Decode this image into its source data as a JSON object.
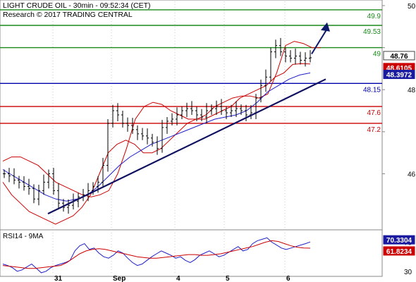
{
  "header": {
    "title": "LIGHT CRUDE OIL - 30min - 09:52:34 (CET)",
    "subtitle": "Research © 2017 TRADING CENTRAL"
  },
  "rsi_panel": {
    "label": "RSI14 - 9MA"
  },
  "colors": {
    "candles": "#000000",
    "upper_band": "#cc0000",
    "lower_band": "#cc0000",
    "ma_blue": "#1f1fc8",
    "trend_line": "#101060",
    "arrow": "#0d1a6b",
    "green_level": "#1a8a1a",
    "blue_level": "#0000aa",
    "red_level": "#cc0000",
    "price_badge": "#ffffff",
    "badge_red": "#cc0000",
    "badge_blue": "#1a1aa0"
  },
  "chart_data": [
    {
      "type": "candlestick",
      "title": "LIGHT CRUDE OIL - 30min - 09:52:34 (CET)",
      "x_tick_labels": [
        "31",
        "Sep",
        "4",
        "5",
        "6"
      ],
      "y_tick_labels": [
        "50",
        "48",
        "46"
      ],
      "ylim": [
        44.7,
        50.1
      ],
      "levels": [
        {
          "label": "49.9",
          "value": 49.9,
          "color": "green"
        },
        {
          "label": "49.53",
          "value": 49.53,
          "color": "green"
        },
        {
          "label": "49",
          "value": 49.0,
          "color": "green"
        },
        {
          "label": "48.15",
          "value": 48.15,
          "color": "blue"
        },
        {
          "label": "47.6",
          "value": 47.6,
          "color": "red"
        },
        {
          "label": "47.2",
          "value": 47.2,
          "color": "red"
        }
      ],
      "badges": [
        {
          "label": "48.76",
          "value": 48.76,
          "kind": "price"
        },
        {
          "label": "48.6105",
          "value": 48.6105,
          "kind": "red"
        },
        {
          "label": "48.3972",
          "value": 48.3972,
          "kind": "blue"
        }
      ],
      "close": [
        46.0,
        45.95,
        45.85,
        45.8,
        45.7,
        45.65,
        45.4,
        45.6,
        45.8,
        46.0,
        45.6,
        45.3,
        45.2,
        45.25,
        45.35,
        45.45,
        45.5,
        45.6,
        45.7,
        45.8,
        46.2,
        47.2,
        47.5,
        47.4,
        47.2,
        47.15,
        47.05,
        46.95,
        46.9,
        46.85,
        46.75,
        46.6,
        47.1,
        47.25,
        47.3,
        47.4,
        47.5,
        47.55,
        47.5,
        47.4,
        47.35,
        47.5,
        47.55,
        47.6,
        47.5,
        47.45,
        47.5,
        47.55,
        47.5,
        47.4,
        47.45,
        47.8,
        48.1,
        48.3,
        48.9,
        49.05,
        48.9,
        48.8,
        48.75,
        48.8,
        48.7,
        48.75,
        48.76
      ],
      "upper_band": [
        46.3,
        46.4,
        46.4,
        46.3,
        46.2,
        46.0,
        45.8,
        45.7,
        45.6,
        45.5,
        45.45,
        45.5,
        45.6,
        46.0,
        46.6,
        47.3,
        47.6,
        47.7,
        47.65,
        47.5,
        47.4,
        47.3,
        47.3,
        47.4,
        47.6,
        47.7,
        47.8,
        47.85,
        47.85,
        47.8,
        47.9,
        48.4,
        49.05,
        49.15,
        49.1,
        49.0,
        49.0
      ],
      "lower_band": [
        45.8,
        45.5,
        45.3,
        45.1,
        45.0,
        44.9,
        44.8,
        44.9,
        45.0,
        45.2,
        45.5,
        46.0,
        46.5,
        46.7,
        46.8,
        46.7,
        46.5,
        46.5,
        46.6,
        46.8,
        47.0,
        47.2,
        47.3,
        47.3,
        47.4,
        47.5,
        47.6,
        47.8,
        47.9,
        48.0,
        48.1,
        48.3,
        48.4,
        48.6,
        48.62,
        48.61
      ],
      "ma": [
        46.1,
        45.95,
        45.8,
        45.65,
        45.5,
        45.4,
        45.35,
        45.4,
        45.5,
        45.7,
        45.95,
        46.2,
        46.4,
        46.55,
        46.7,
        46.8,
        46.9,
        47.0,
        47.1,
        47.2,
        47.3,
        47.35,
        47.4,
        47.5,
        47.7,
        47.95,
        48.1,
        48.25,
        48.35,
        48.4
      ],
      "trend_line": [
        [
          0.0,
          45.05
        ],
        [
          1.0,
          48.25
        ]
      ],
      "forecast_arrow": [
        [
          0.0,
          48.85
        ],
        [
          1.0,
          49.55
        ]
      ]
    },
    {
      "type": "line",
      "title": "RSI14 - 9MA",
      "y_tick_labels": [
        "70",
        "30"
      ],
      "ylim": [
        25,
        85
      ],
      "series": [
        {
          "name": "RSI14",
          "values": [
            40,
            38,
            35,
            30,
            32,
            36,
            40,
            34,
            28,
            30,
            35,
            38,
            40,
            42,
            45,
            58,
            65,
            68,
            60,
            62,
            55,
            50,
            48,
            52,
            58,
            55,
            48,
            42,
            38,
            40,
            45,
            50,
            54,
            58,
            55,
            52,
            48,
            50,
            45,
            42,
            46,
            52,
            55,
            58,
            54,
            50,
            52,
            56,
            60,
            64,
            58,
            60,
            68,
            72,
            74,
            76,
            70,
            66,
            62,
            60,
            62,
            64,
            66,
            68,
            70.33
          ]
        },
        {
          "name": "9MA",
          "values": [
            38,
            37,
            36,
            35,
            34,
            34,
            35,
            36,
            37,
            38,
            42,
            48,
            54,
            58,
            60,
            61,
            60,
            58,
            56,
            54,
            52,
            50,
            49,
            48,
            48,
            49,
            50,
            51,
            52,
            53,
            53,
            52,
            52,
            53,
            54,
            56,
            58,
            60,
            62,
            64,
            67,
            70,
            72,
            71,
            68,
            65,
            63,
            62,
            61.82
          ]
        }
      ],
      "badges": [
        {
          "label": "70.3304",
          "value": 70.3304,
          "kind": "blue"
        },
        {
          "label": "61.8234",
          "value": 61.8234,
          "kind": "red"
        }
      ]
    }
  ]
}
